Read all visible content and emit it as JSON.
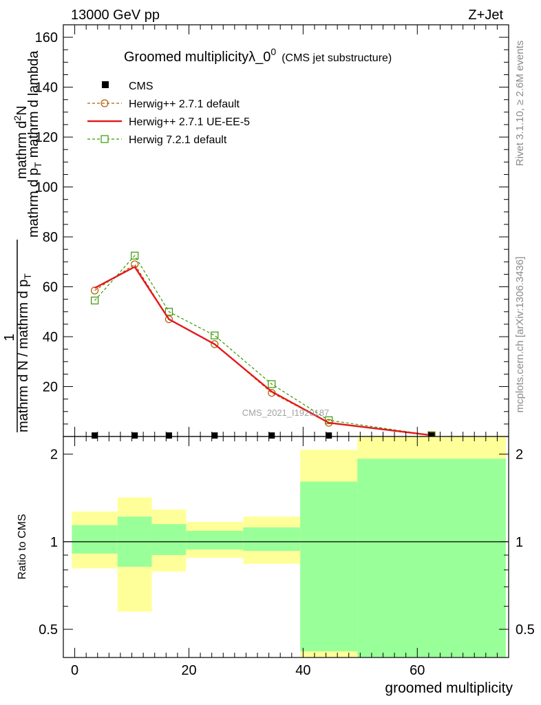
{
  "header": {
    "energy_label": "13000 GeV pp",
    "process_label": "Z+Jet"
  },
  "side_labels": {
    "rivet": "Rivet 3.1.10, ≥ 2.6M events",
    "mcplots": "mcplots.cern.ch [arXiv:1306.3436]"
  },
  "watermark": "CMS_2021_I1920187",
  "chart_data": [
    {
      "type": "line",
      "title_main": "Groomed multiplicityλ_0",
      "title_sup": "0",
      "title_sub": "(CMS jet substructure)",
      "ylabel_prefix": "1",
      "ylabel_denominator": "mathrm d N / mathrm d p",
      "ylabel_sub": "T",
      "ylabel_numerator": "mathrm d",
      "ylabel_superscript": "2",
      "ylabel_numerator2": "N",
      "ylabel_rest": "mathrm d p",
      "ylabel_rest_sub": "T",
      "ylabel_rest2": "mathrm d lambda",
      "ylim": [
        0,
        165
      ],
      "yticks": [
        "20",
        "40",
        "60",
        "80",
        "100",
        "120",
        "140",
        "160"
      ],
      "ytick_values": [
        20,
        40,
        60,
        80,
        100,
        120,
        140,
        160
      ],
      "xlim": [
        -2,
        76
      ],
      "legend_position": "top-left",
      "series": [
        {
          "name": "CMS",
          "color": "#000000",
          "marker": "filled-square",
          "x": [
            3.5,
            10.5,
            16.5,
            24.5,
            34.5,
            44.5,
            62.5
          ],
          "y": [
            0.4,
            0.4,
            0.4,
            0.4,
            0.4,
            0.4,
            0.4
          ]
        },
        {
          "name": "Herwig++ 2.7.1 default",
          "color": "#b35900",
          "marker": "open-circle",
          "dash": "dashed",
          "x": [
            3.5,
            10.5,
            16.5,
            24.5,
            34.5,
            44.5,
            62.5
          ],
          "y": [
            58.5,
            69,
            47,
            37,
            17.5,
            5.5,
            0.5
          ]
        },
        {
          "name": "Herwig++ 2.7.1 UE-EE-5",
          "color": "#e31a1c",
          "marker": "none",
          "dash": "solid",
          "x": [
            3.5,
            10.5,
            16.5,
            24.5,
            34.5,
            44.5,
            62.5
          ],
          "y": [
            59.5,
            68,
            47,
            37,
            18,
            5.5,
            0.5
          ]
        },
        {
          "name": "Herwig 7.2.1 default",
          "color": "#339900",
          "marker": "open-square",
          "dash": "dashed",
          "x": [
            3.5,
            10.5,
            16.5,
            24.5,
            34.5,
            44.5,
            62.5
          ],
          "y": [
            54.5,
            72.5,
            50,
            40.5,
            21,
            6.5,
            0.5
          ]
        }
      ]
    },
    {
      "type": "area",
      "ylabel": "Ratio to CMS",
      "yscale": "log",
      "ylim": [
        0.4,
        2.3
      ],
      "yticks": [
        "0.5",
        "1",
        "2"
      ],
      "ytick_values": [
        0.5,
        1,
        2
      ],
      "xlabel": "groomed multiplicity",
      "xlim": [
        -2,
        76
      ],
      "xticks": [
        "0",
        "20",
        "40",
        "60"
      ],
      "xtick_values": [
        0,
        20,
        40,
        60
      ],
      "reference": 1,
      "bands": [
        {
          "x0": -0.5,
          "x1": 7.5,
          "yellow": [
            0.81,
            1.27
          ],
          "green": [
            0.91,
            1.14
          ]
        },
        {
          "x0": 7.5,
          "x1": 13.5,
          "yellow": [
            0.575,
            1.42
          ],
          "green": [
            0.82,
            1.22
          ]
        },
        {
          "x0": 13.5,
          "x1": 19.5,
          "yellow": [
            0.79,
            1.29
          ],
          "green": [
            0.9,
            1.15
          ]
        },
        {
          "x0": 19.5,
          "x1": 29.5,
          "yellow": [
            0.88,
            1.17
          ],
          "green": [
            0.94,
            1.09
          ]
        },
        {
          "x0": 29.5,
          "x1": 39.5,
          "yellow": [
            0.84,
            1.22
          ],
          "green": [
            0.93,
            1.12
          ]
        },
        {
          "x0": 39.5,
          "x1": 49.5,
          "yellow": [
            0.3,
            2.07
          ],
          "green": [
            0.42,
            1.61
          ]
        },
        {
          "x0": 49.5,
          "x1": 75.5,
          "yellow": [
            0.3,
            2.5
          ],
          "green": [
            0.3,
            1.93
          ]
        }
      ],
      "colors": {
        "yellow": "#ffff99",
        "green": "#99ff99"
      }
    }
  ]
}
